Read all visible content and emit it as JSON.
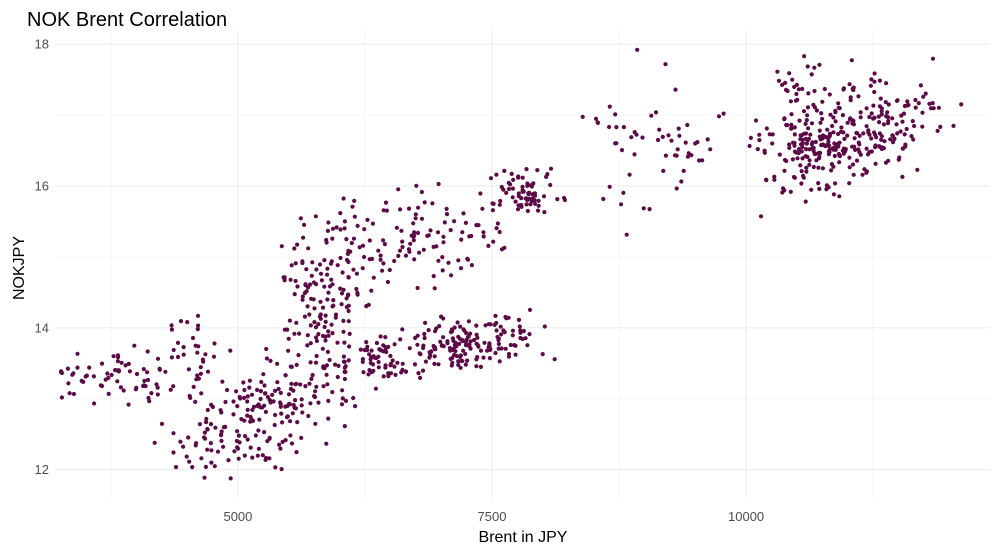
{
  "chart_data": {
    "type": "scatter",
    "title": "NOK Brent Correlation",
    "xlabel": "Brent in JPY",
    "ylabel": "NOKJPY",
    "xlim": [
      3200,
      12400
    ],
    "ylim": [
      11.6,
      18.2
    ],
    "x_ticks": [
      5000,
      7500,
      10000
    ],
    "x_tick_labels": [
      "5000",
      "7500",
      "10000"
    ],
    "y_ticks": [
      12,
      14,
      16,
      18
    ],
    "y_tick_labels": [
      "12",
      "14",
      "16",
      "18"
    ],
    "grid": true,
    "legend": "none",
    "point_color": "#5c0b47",
    "clusters": [
      {
        "cx": 3900,
        "cy": 13.3,
        "sx": 400,
        "sy": 0.22,
        "n": 70
      },
      {
        "cx": 4500,
        "cy": 13.6,
        "sx": 250,
        "sy": 0.25,
        "n": 30
      },
      {
        "cx": 4850,
        "cy": 12.4,
        "sx": 300,
        "sy": 0.25,
        "n": 80
      },
      {
        "cx": 5400,
        "cy": 13.0,
        "sx": 300,
        "sy": 0.28,
        "n": 120
      },
      {
        "cx": 5800,
        "cy": 14.3,
        "sx": 180,
        "sy": 0.55,
        "n": 130
      },
      {
        "cx": 6150,
        "cy": 15.0,
        "sx": 150,
        "sy": 0.35,
        "n": 40
      },
      {
        "cx": 6350,
        "cy": 13.55,
        "sx": 200,
        "sy": 0.15,
        "n": 70
      },
      {
        "cx": 6900,
        "cy": 15.3,
        "sx": 350,
        "sy": 0.35,
        "n": 90
      },
      {
        "cx": 7200,
        "cy": 13.7,
        "sx": 300,
        "sy": 0.18,
        "n": 130
      },
      {
        "cx": 7800,
        "cy": 15.9,
        "sx": 180,
        "sy": 0.15,
        "n": 70
      },
      {
        "cx": 7650,
        "cy": 14.0,
        "sx": 120,
        "sy": 0.15,
        "n": 30
      },
      {
        "cx": 8600,
        "cy": 16.9,
        "sx": 150,
        "sy": 0.12,
        "n": 8
      },
      {
        "cx": 9300,
        "cy": 16.6,
        "sx": 300,
        "sy": 0.4,
        "n": 50
      },
      {
        "cx": 10700,
        "cy": 16.5,
        "sx": 300,
        "sy": 0.35,
        "n": 200
      },
      {
        "cx": 11300,
        "cy": 16.9,
        "sx": 300,
        "sy": 0.3,
        "n": 130
      },
      {
        "cx": 10600,
        "cy": 17.35,
        "sx": 250,
        "sy": 0.15,
        "n": 30
      }
    ],
    "seed": 20240615
  }
}
